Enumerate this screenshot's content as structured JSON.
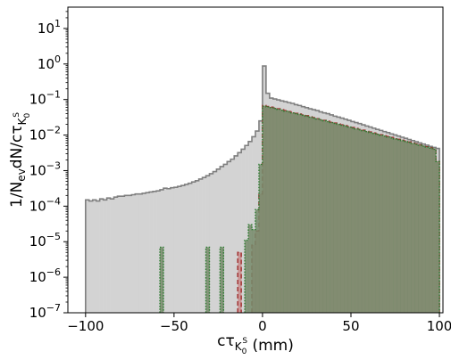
{
  "chart_data": {
    "type": "area",
    "step": true,
    "xlabel_main": "cτ",
    "xlabel_sub": "K",
    "xlabel_subsub_sub": "0",
    "xlabel_subsub_sup": "S",
    "xlabel_unit": " (mm)",
    "ylabel_main": "1/N",
    "ylabel_sub1": "ev",
    "ylabel_mid": "dN/cτ",
    "ylabel_sub2": "K",
    "ylabel_sub2_sub": "0",
    "ylabel_sub2_sup": "S",
    "xlim": [
      -110,
      102
    ],
    "ylim_log10": [
      -7,
      1.6
    ],
    "yscale": "log",
    "grid": false,
    "x_ticks": [
      -100,
      -50,
      0,
      50,
      100
    ],
    "x_tick_labels": [
      "−100",
      "−50",
      "0",
      "50",
      "100"
    ],
    "y_ticks_exp": [
      -7,
      -6,
      -5,
      -4,
      -3,
      -2,
      -1,
      0,
      1
    ],
    "y_tick_base": "10",
    "y_tick_exponents": [
      "−7",
      "−6",
      "−5",
      "−4",
      "−3",
      "−2",
      "−1",
      "0",
      "1"
    ],
    "bin_width": 2,
    "series": [
      {
        "fill": "#d3d3d3",
        "edge": "#7f7f7f",
        "linestyle": "solid",
        "bins": [
          [
            -100,
            0.00015
          ],
          [
            -98,
            0.00014
          ],
          [
            -96,
            0.00015
          ],
          [
            -94,
            0.00014
          ],
          [
            -92,
            0.00016
          ],
          [
            -90,
            0.00015
          ],
          [
            -88,
            0.00017
          ],
          [
            -86,
            0.00016
          ],
          [
            -84,
            0.00018
          ],
          [
            -82,
            0.00019
          ],
          [
            -80,
            0.00019
          ],
          [
            -78,
            0.0002
          ],
          [
            -76,
            0.0002
          ],
          [
            -74,
            0.00021
          ],
          [
            -72,
            0.00022
          ],
          [
            -70,
            0.00022
          ],
          [
            -68,
            0.00023
          ],
          [
            -66,
            0.00024
          ],
          [
            -64,
            0.00025
          ],
          [
            -62,
            0.00026
          ],
          [
            -60,
            0.00027
          ],
          [
            -58,
            0.00029
          ],
          [
            -56,
            0.00032
          ],
          [
            -54,
            0.00031
          ],
          [
            -52,
            0.00033
          ],
          [
            -50,
            0.00034
          ],
          [
            -48,
            0.00036
          ],
          [
            -46,
            0.00038
          ],
          [
            -44,
            0.00041
          ],
          [
            -42,
            0.00044
          ],
          [
            -40,
            0.00048
          ],
          [
            -38,
            0.00052
          ],
          [
            -36,
            0.00058
          ],
          [
            -34,
            0.00064
          ],
          [
            -32,
            0.00072
          ],
          [
            -30,
            0.00082
          ],
          [
            -28,
            0.00094
          ],
          [
            -26,
            0.0011
          ],
          [
            -24,
            0.0013
          ],
          [
            -22,
            0.0015
          ],
          [
            -20,
            0.0018
          ],
          [
            -18,
            0.0021
          ],
          [
            -16,
            0.0026
          ],
          [
            -14,
            0.0032
          ],
          [
            -12,
            0.004
          ],
          [
            -10,
            0.0051
          ],
          [
            -8,
            0.0066
          ],
          [
            -6,
            0.009
          ],
          [
            -4,
            0.013
          ],
          [
            -2,
            0.025
          ],
          [
            0,
            0.88
          ],
          [
            2,
            0.15
          ],
          [
            4,
            0.11
          ],
          [
            6,
            0.104
          ],
          [
            8,
            0.098
          ],
          [
            10,
            0.092
          ],
          [
            12,
            0.087
          ],
          [
            14,
            0.082
          ],
          [
            16,
            0.078
          ],
          [
            18,
            0.072
          ],
          [
            20,
            0.068
          ],
          [
            22,
            0.063
          ],
          [
            24,
            0.059
          ],
          [
            26,
            0.055
          ],
          [
            28,
            0.052
          ],
          [
            30,
            0.049
          ],
          [
            32,
            0.045
          ],
          [
            34,
            0.042
          ],
          [
            36,
            0.04
          ],
          [
            38,
            0.037
          ],
          [
            40,
            0.034
          ],
          [
            42,
            0.032
          ],
          [
            44,
            0.03
          ],
          [
            46,
            0.028
          ],
          [
            48,
            0.026
          ],
          [
            50,
            0.024
          ],
          [
            52,
            0.0225
          ],
          [
            54,
            0.021
          ],
          [
            56,
            0.0195
          ],
          [
            58,
            0.018
          ],
          [
            60,
            0.0168
          ],
          [
            62,
            0.0156
          ],
          [
            64,
            0.0145
          ],
          [
            66,
            0.0135
          ],
          [
            68,
            0.0125
          ],
          [
            70,
            0.0117
          ],
          [
            72,
            0.0108
          ],
          [
            74,
            0.0101
          ],
          [
            76,
            0.0094
          ],
          [
            78,
            0.0087
          ],
          [
            80,
            0.0081
          ],
          [
            82,
            0.0075
          ],
          [
            84,
            0.007
          ],
          [
            86,
            0.0065
          ],
          [
            88,
            0.006
          ],
          [
            90,
            0.0056
          ],
          [
            92,
            0.0052
          ],
          [
            94,
            0.0048
          ],
          [
            96,
            0.0045
          ],
          [
            98,
            0.0042
          ]
        ]
      },
      {
        "fill": "#c98d8d",
        "edge": "#a02c2c",
        "linestyle": "dashed",
        "bins": [
          [
            -14,
            5e-06
          ],
          [
            -6,
            8e-06
          ],
          [
            -4,
            2e-05
          ],
          [
            -2,
            0.00022
          ],
          [
            0,
            0.068
          ],
          [
            2,
            0.064
          ],
          [
            4,
            0.061
          ],
          [
            6,
            0.058
          ],
          [
            8,
            0.055
          ],
          [
            10,
            0.052
          ],
          [
            12,
            0.049
          ],
          [
            14,
            0.046
          ],
          [
            16,
            0.044
          ],
          [
            18,
            0.041
          ],
          [
            20,
            0.039
          ],
          [
            22,
            0.037
          ],
          [
            24,
            0.035
          ],
          [
            26,
            0.033
          ],
          [
            28,
            0.031
          ],
          [
            30,
            0.029
          ],
          [
            32,
            0.0275
          ],
          [
            34,
            0.026
          ],
          [
            36,
            0.0245
          ],
          [
            38,
            0.023
          ],
          [
            40,
            0.0218
          ],
          [
            42,
            0.0206
          ],
          [
            44,
            0.0194
          ],
          [
            46,
            0.0183
          ],
          [
            48,
            0.0173
          ],
          [
            50,
            0.0163
          ],
          [
            52,
            0.0154
          ],
          [
            54,
            0.0145
          ],
          [
            56,
            0.0137
          ],
          [
            58,
            0.0129
          ],
          [
            60,
            0.0122
          ],
          [
            62,
            0.0115
          ],
          [
            64,
            0.0108
          ],
          [
            66,
            0.0102
          ],
          [
            68,
            0.0096
          ],
          [
            70,
            0.0091
          ],
          [
            72,
            0.0086
          ],
          [
            74,
            0.0081
          ],
          [
            76,
            0.0076
          ],
          [
            78,
            0.0072
          ],
          [
            80,
            0.0068
          ],
          [
            82,
            0.0064
          ],
          [
            84,
            0.006
          ],
          [
            86,
            0.0057
          ],
          [
            88,
            0.0053
          ],
          [
            90,
            0.005
          ],
          [
            92,
            0.0047
          ],
          [
            94,
            0.0044
          ],
          [
            96,
            0.0041
          ],
          [
            98,
            0.0018
          ]
        ]
      },
      {
        "fill": "#75896a",
        "edge": "#2e7d32",
        "linestyle": "dotted",
        "bins": [
          [
            -58,
            7e-06
          ],
          [
            -32,
            7e-06
          ],
          [
            -24,
            7e-06
          ],
          [
            -10,
            1.1e-05
          ],
          [
            -8,
            3e-05
          ],
          [
            -6,
            2.2e-05
          ],
          [
            -4,
            8e-05
          ],
          [
            -2,
            0.0015
          ],
          [
            0,
            0.065
          ],
          [
            2,
            0.062
          ],
          [
            4,
            0.059
          ],
          [
            6,
            0.056
          ],
          [
            8,
            0.053
          ],
          [
            10,
            0.05
          ],
          [
            12,
            0.047
          ],
          [
            14,
            0.045
          ],
          [
            16,
            0.042
          ],
          [
            18,
            0.04
          ],
          [
            20,
            0.038
          ],
          [
            22,
            0.036
          ],
          [
            24,
            0.034
          ],
          [
            26,
            0.032
          ],
          [
            28,
            0.03
          ],
          [
            30,
            0.0284
          ],
          [
            32,
            0.0268
          ],
          [
            34,
            0.0253
          ],
          [
            36,
            0.0238
          ],
          [
            38,
            0.0225
          ],
          [
            40,
            0.0212
          ],
          [
            42,
            0.02
          ],
          [
            44,
            0.0189
          ],
          [
            46,
            0.0178
          ],
          [
            48,
            0.0168
          ],
          [
            50,
            0.0158
          ],
          [
            52,
            0.0149
          ],
          [
            54,
            0.0141
          ],
          [
            56,
            0.0133
          ],
          [
            58,
            0.0125
          ],
          [
            60,
            0.0118
          ],
          [
            62,
            0.0111
          ],
          [
            64,
            0.0105
          ],
          [
            66,
            0.0099
          ],
          [
            68,
            0.0093
          ],
          [
            70,
            0.0088
          ],
          [
            72,
            0.0083
          ],
          [
            74,
            0.0078
          ],
          [
            76,
            0.0074
          ],
          [
            78,
            0.007
          ],
          [
            80,
            0.0066
          ],
          [
            82,
            0.0062
          ],
          [
            84,
            0.0058
          ],
          [
            86,
            0.0055
          ],
          [
            88,
            0.0052
          ],
          [
            90,
            0.0049
          ],
          [
            92,
            0.0046
          ],
          [
            94,
            0.0043
          ],
          [
            96,
            0.004
          ],
          [
            98,
            0.0018
          ]
        ]
      }
    ]
  }
}
